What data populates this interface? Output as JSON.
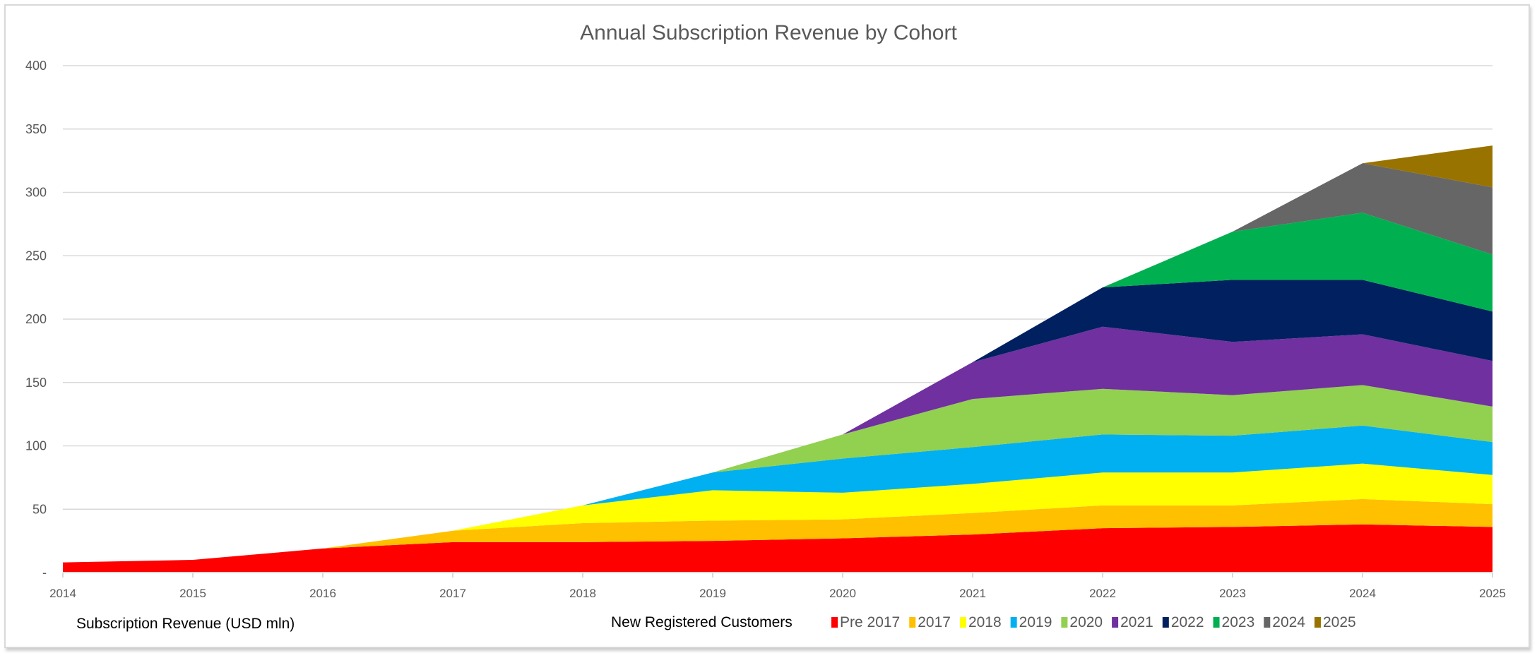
{
  "chart_data": {
    "type": "area",
    "stacked": true,
    "title": "Annual Subscription Revenue by Cohort",
    "xlabel": "Subscription Revenue (USD mln)",
    "legend_title": "New Registered Customers",
    "legend_position": "bottom",
    "grid": true,
    "ylim": [
      0,
      400
    ],
    "yticks": [
      {
        "value": 0,
        "label": "-"
      },
      {
        "value": 50,
        "label": "50"
      },
      {
        "value": 100,
        "label": "100"
      },
      {
        "value": 150,
        "label": "150"
      },
      {
        "value": 200,
        "label": "200"
      },
      {
        "value": 250,
        "label": "250"
      },
      {
        "value": 300,
        "label": "300"
      },
      {
        "value": 350,
        "label": "350"
      },
      {
        "value": 400,
        "label": "400"
      }
    ],
    "categories": [
      "2014",
      "2015",
      "2016",
      "2017",
      "2018",
      "2019",
      "2020",
      "2021",
      "2022",
      "2023",
      "2024",
      "2025"
    ],
    "series": [
      {
        "name": "Pre 2017",
        "color": "#FF0000",
        "values": [
          8,
          10,
          19,
          24,
          24,
          25,
          27,
          30,
          35,
          36,
          38,
          36
        ]
      },
      {
        "name": "2017",
        "color": "#FFC000",
        "values": [
          0,
          0,
          0,
          9,
          15,
          16,
          15,
          17,
          18,
          17,
          20,
          18
        ]
      },
      {
        "name": "2018",
        "color": "#FFFF00",
        "values": [
          0,
          0,
          0,
          0,
          14,
          24,
          21,
          23,
          26,
          26,
          28,
          23
        ]
      },
      {
        "name": "2019",
        "color": "#00B0F0",
        "values": [
          0,
          0,
          0,
          0,
          0,
          14,
          27,
          29,
          30,
          29,
          30,
          26
        ]
      },
      {
        "name": "2020",
        "color": "#92D050",
        "values": [
          0,
          0,
          0,
          0,
          0,
          0,
          19,
          38,
          36,
          32,
          32,
          28
        ]
      },
      {
        "name": "2021",
        "color": "#7030A0",
        "values": [
          0,
          0,
          0,
          0,
          0,
          0,
          0,
          29,
          49,
          42,
          40,
          36
        ]
      },
      {
        "name": "2022",
        "color": "#002060",
        "values": [
          0,
          0,
          0,
          0,
          0,
          0,
          0,
          0,
          31,
          49,
          43,
          39
        ]
      },
      {
        "name": "2023",
        "color": "#00B050",
        "values": [
          0,
          0,
          0,
          0,
          0,
          0,
          0,
          0,
          0,
          38,
          53,
          45
        ]
      },
      {
        "name": "2024",
        "color": "#666666",
        "values": [
          0,
          0,
          0,
          0,
          0,
          0,
          0,
          0,
          0,
          0,
          39,
          53
        ]
      },
      {
        "name": "2025",
        "color": "#997300",
        "values": [
          0,
          0,
          0,
          0,
          0,
          0,
          0,
          0,
          0,
          0,
          0,
          33
        ]
      }
    ]
  }
}
